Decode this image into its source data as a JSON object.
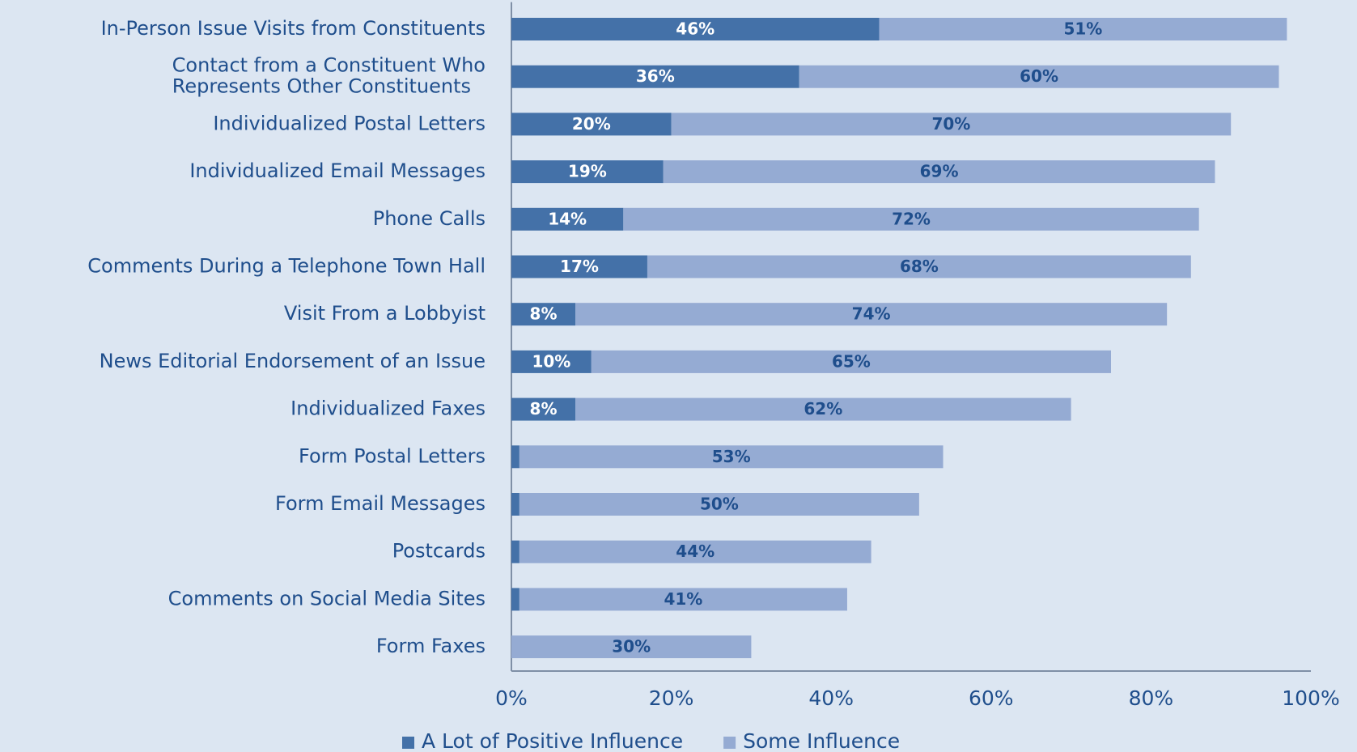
{
  "chart_data": {
    "type": "stacked-bar-horizontal",
    "categories": [
      "In-Person Issue Visits from Constituents",
      "Contact from a Constituent Who Represents Other Constituents",
      "Individualized Postal Letters",
      "Individualized Email Messages",
      "Phone Calls",
      "Comments During a Telephone Town Hall",
      "Visit From a Lobbyist",
      "News Editorial Endorsement of an Issue",
      "Individualized Faxes",
      "Form Postal Letters",
      "Form Email Messages",
      "Postcards",
      "Comments on Social Media Sites",
      "Form Faxes"
    ],
    "series": [
      {
        "name": "A Lot of Positive Influence",
        "color": "#4471a8",
        "values": [
          46,
          36,
          20,
          19,
          14,
          17,
          8,
          10,
          8,
          1,
          1,
          1,
          1,
          0
        ],
        "value_labels": [
          "46%",
          "36%",
          "20%",
          "19%",
          "14%",
          "17%",
          "8%",
          "10%",
          "8%",
          "1%",
          "1%",
          "1%",
          "1%",
          "0%"
        ]
      },
      {
        "name": "Some Influence",
        "color": "#95abd3",
        "values": [
          51,
          60,
          70,
          69,
          72,
          68,
          74,
          65,
          62,
          53,
          50,
          44,
          41,
          30
        ],
        "value_labels": [
          "51%",
          "60%",
          "70%",
          "69%",
          "72%",
          "68%",
          "74%",
          "65%",
          "62%",
          "53%",
          "50%",
          "44%",
          "41%",
          "30%"
        ]
      }
    ],
    "xlim": [
      0,
      100
    ],
    "xticks": [
      {
        "value": 0,
        "label": "0%"
      },
      {
        "value": 20,
        "label": "20%"
      },
      {
        "value": 40,
        "label": "40%"
      },
      {
        "value": 60,
        "label": "60%"
      },
      {
        "value": 80,
        "label": "80%"
      },
      {
        "value": 100,
        "label": "100%"
      }
    ],
    "legend": "bottom"
  }
}
